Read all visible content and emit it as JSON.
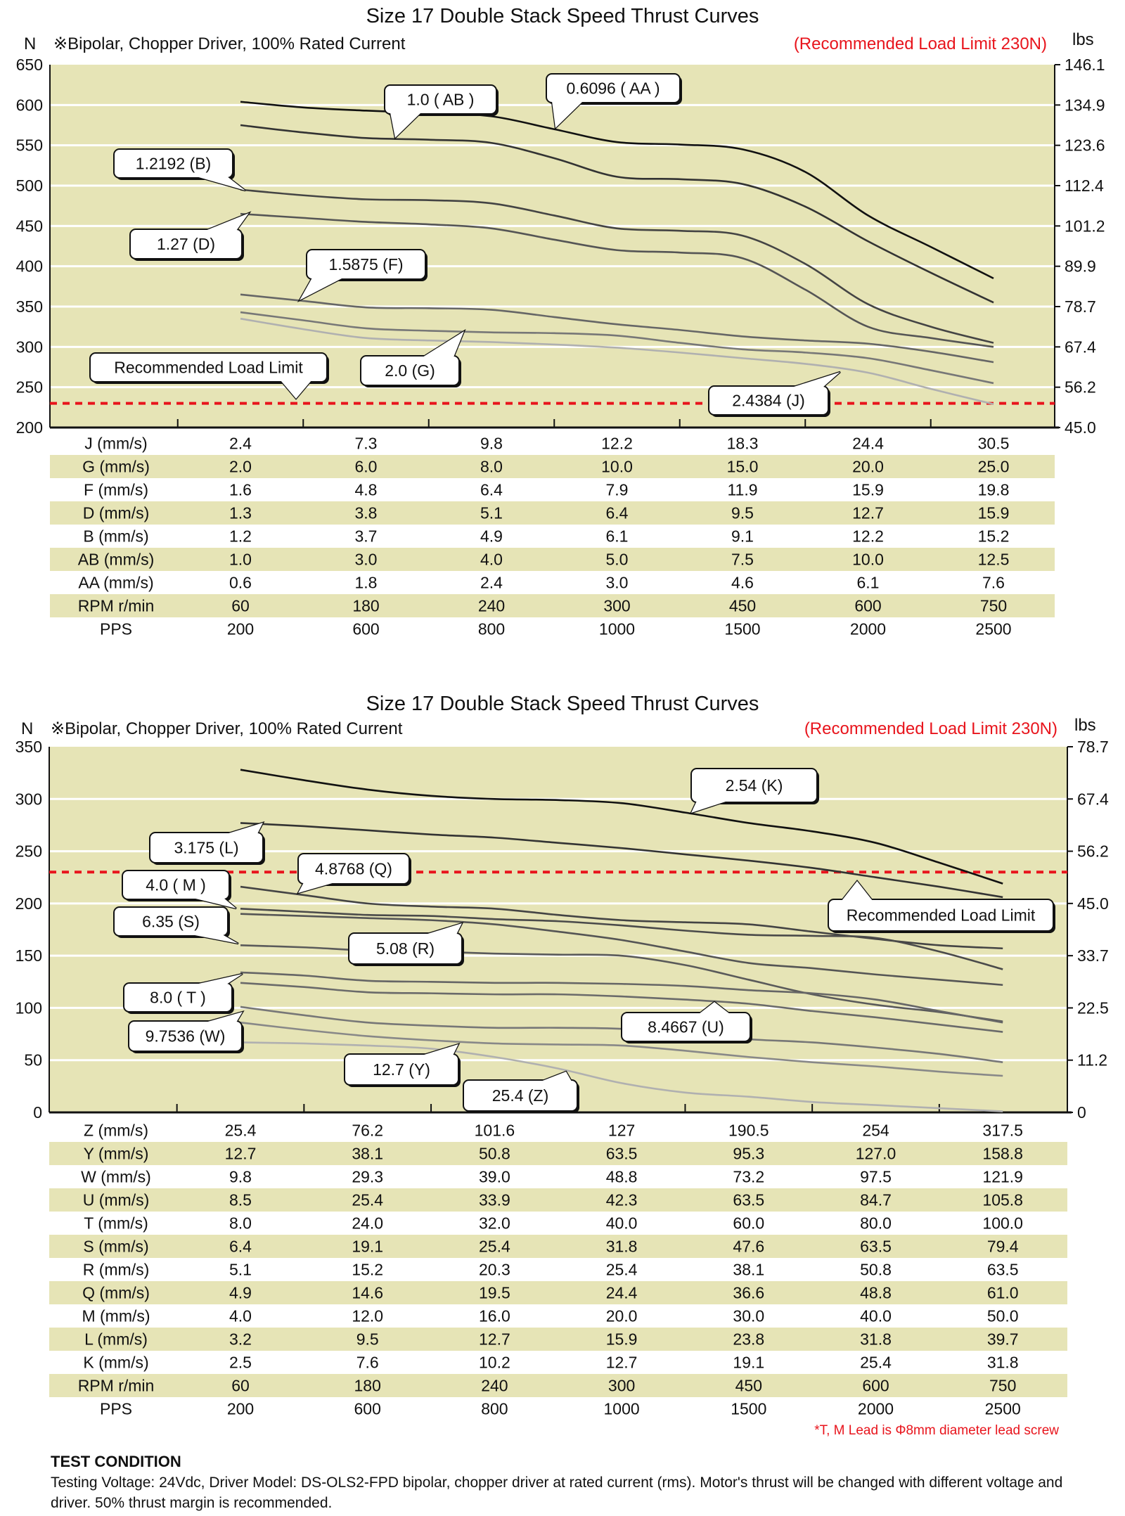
{
  "chart_data": [
    {
      "type": "line",
      "title": "Size 17 Double Stack Speed Thrust Curves",
      "subtitle": "※Bipolar, Chopper Driver, 100% Rated Current",
      "limit_note": "(Recommended Load Limit 230N)",
      "y_left_unit": "N",
      "y_right_unit": "lbs",
      "ylim": [
        200,
        650
      ],
      "y_left_ticks": [
        "650",
        "600",
        "550",
        "500",
        "450",
        "400",
        "350",
        "300",
        "250",
        "200"
      ],
      "y_right_ticks": [
        "146.1",
        "134.9",
        "123.6",
        "112.4",
        "101.2",
        "89.9",
        "78.7",
        "67.4",
        "56.2",
        "45.0"
      ],
      "grid": true,
      "load_limit": {
        "value": 230,
        "label": "Recommended Load Limit",
        "color": "#e8141c"
      },
      "x_note": "values given at each PPS column; mid_values between adjacent columns",
      "x_pps": [
        200,
        600,
        800,
        1000,
        1500,
        2000,
        2500
      ],
      "series": [
        {
          "name": "0.6096 ( AA )",
          "color": "#111111",
          "values": [
            604,
            593,
            586,
            554,
            545,
            463,
            385
          ],
          "mid_values": [
            597,
            590,
            570,
            551,
            517,
            424
          ]
        },
        {
          "name": "1.0 ( AB )",
          "color": "#333333",
          "values": [
            575,
            559,
            553,
            511,
            502,
            431,
            355
          ],
          "mid_values": [
            566,
            557,
            534,
            508,
            474,
            392
          ]
        },
        {
          "name": "1.2192 (B)",
          "color": "#444444",
          "values": [
            495,
            483,
            478,
            447,
            438,
            353,
            305
          ],
          "mid_values": [
            488,
            482,
            463,
            444,
            403,
            325
          ]
        },
        {
          "name": "1.27 (D)",
          "color": "#555555",
          "values": [
            465,
            455,
            447,
            420,
            410,
            325,
            300
          ],
          "mid_values": [
            460,
            452,
            433,
            417,
            371,
            311
          ]
        },
        {
          "name": "1.5875 (F)",
          "color": "#666666",
          "values": [
            365,
            349,
            346,
            328,
            313,
            304,
            281
          ],
          "mid_values": [
            357,
            348,
            337,
            321,
            308,
            294
          ]
        },
        {
          "name": "2.0 (G)",
          "color": "#777777",
          "values": [
            343,
            323,
            318,
            314,
            297,
            286,
            255
          ],
          "mid_values": [
            333,
            320,
            317,
            305,
            293,
            271
          ]
        },
        {
          "name": "2.4384 (J)",
          "color": "#b0b0b0",
          "values": [
            335,
            311,
            306,
            299,
            286,
            268,
            229
          ],
          "mid_values": [
            322,
            308,
            303,
            293,
            279,
            248
          ]
        }
      ],
      "table": [
        {
          "label": "J (mm/s)",
          "values": [
            "2.4",
            "7.3",
            "9.8",
            "12.2",
            "18.3",
            "24.4",
            "30.5"
          ]
        },
        {
          "label": "G (mm/s)",
          "values": [
            "2.0",
            "6.0",
            "8.0",
            "10.0",
            "15.0",
            "20.0",
            "25.0"
          ]
        },
        {
          "label": "F (mm/s)",
          "values": [
            "1.6",
            "4.8",
            "6.4",
            "7.9",
            "11.9",
            "15.9",
            "19.8"
          ]
        },
        {
          "label": "D (mm/s)",
          "values": [
            "1.3",
            "3.8",
            "5.1",
            "6.4",
            "9.5",
            "12.7",
            "15.9"
          ]
        },
        {
          "label": "B (mm/s)",
          "values": [
            "1.2",
            "3.7",
            "4.9",
            "6.1",
            "9.1",
            "12.2",
            "15.2"
          ]
        },
        {
          "label": "AB (mm/s)",
          "values": [
            "1.0",
            "3.0",
            "4.0",
            "5.0",
            "7.5",
            "10.0",
            "12.5"
          ]
        },
        {
          "label": "AA (mm/s)",
          "values": [
            "0.6",
            "1.8",
            "2.4",
            "3.0",
            "4.6",
            "6.1",
            "7.6"
          ]
        },
        {
          "label": "RPM r/min",
          "values": [
            "60",
            "180",
            "240",
            "300",
            "450",
            "600",
            "750"
          ]
        },
        {
          "label": "PPS",
          "values": [
            "200",
            "600",
            "800",
            "1000",
            "1500",
            "2000",
            "2500"
          ]
        }
      ]
    },
    {
      "type": "line",
      "title": "Size 17 Double Stack Speed Thrust Curves",
      "subtitle": "※Bipolar, Chopper Driver, 100% Rated Current",
      "limit_note": "(Recommended Load Limit 230N)",
      "y_left_unit": "N",
      "y_right_unit": "lbs",
      "ylim": [
        0,
        350
      ],
      "y_left_ticks": [
        "350",
        "300",
        "250",
        "200",
        "150",
        "100",
        "50",
        "0"
      ],
      "y_right_ticks": [
        "78.7",
        "67.4",
        "56.2",
        "45.0",
        "33.7",
        "22.5",
        "11.2",
        "0"
      ],
      "grid": true,
      "load_limit": {
        "value": 230,
        "label": "Recommended Load Limit",
        "color": "#e8141c"
      },
      "x_note": "values given at each PPS column; mid_values between adjacent columns",
      "x_pps": [
        200,
        600,
        800,
        1000,
        1500,
        2000,
        2500
      ],
      "series": [
        {
          "name": "2.54 (K)",
          "color": "#111111",
          "values": [
            328,
            309,
            300,
            296,
            277,
            258,
            219
          ],
          "mid_values": [
            318,
            303,
            299,
            287,
            269,
            239
          ]
        },
        {
          "name": "3.175 (L)",
          "color": "#333333",
          "values": [
            277,
            270,
            263,
            253,
            241,
            225,
            206
          ],
          "mid_values": [
            274,
            266,
            258,
            247,
            234,
            216
          ]
        },
        {
          "name": "4.0 ( M )",
          "color": "#444444",
          "values": [
            216,
            200,
            195,
            184,
            180,
            166,
            157
          ],
          "mid_values": [
            208,
            197,
            189,
            182,
            173,
            160
          ]
        },
        {
          "name": "4.8768 (Q)",
          "color": "#4a4a4a",
          "values": [
            195,
            189,
            185,
            179,
            170,
            167,
            137
          ],
          "mid_values": [
            192,
            188,
            183,
            174,
            169,
            154
          ]
        },
        {
          "name": "5.08 (R)",
          "color": "#555555",
          "values": [
            190,
            186,
            180,
            165,
            143,
            132,
            122
          ],
          "mid_values": [
            188,
            184,
            173,
            154,
            138,
            127
          ]
        },
        {
          "name": "6.35 (S)",
          "color": "#5a5a5a",
          "values": [
            160,
            155,
            152,
            150,
            127,
            103,
            87
          ],
          "mid_values": [
            158,
            154,
            151,
            141,
            113,
            96
          ]
        },
        {
          "name": "8.0 ( T )",
          "color": "#666666",
          "values": [
            134,
            126,
            124,
            123,
            117,
            108,
            86
          ],
          "mid_values": [
            131,
            125,
            124,
            121,
            114,
            97
          ]
        },
        {
          "name": "8.4667 (U)",
          "color": "#6a6a6a",
          "values": [
            124,
            115,
            113,
            111,
            104,
            91,
            77
          ],
          "mid_values": [
            120,
            114,
            113,
            108,
            97,
            84
          ]
        },
        {
          "name": "9.7536 (W)",
          "color": "#777777",
          "values": [
            101,
            86,
            81,
            80,
            70,
            62,
            48
          ],
          "mid_values": [
            93,
            83,
            81,
            75,
            67,
            56
          ]
        },
        {
          "name": "12.7 (Y)",
          "color": "#888888",
          "values": [
            86,
            73,
            66,
            64,
            53,
            44,
            35
          ],
          "mid_values": [
            79,
            69,
            65,
            59,
            48,
            39
          ]
        },
        {
          "name": "25.4 (Z)",
          "color": "#b0b0b0",
          "values": [
            67,
            64,
            53,
            28,
            15,
            7,
            1
          ],
          "mid_values": [
            66,
            61,
            42,
            19,
            10,
            4
          ]
        }
      ],
      "table": [
        {
          "label": "Z (mm/s)",
          "values": [
            "25.4",
            "76.2",
            "101.6",
            "127",
            "190.5",
            "254",
            "317.5"
          ]
        },
        {
          "label": "Y (mm/s)",
          "values": [
            "12.7",
            "38.1",
            "50.8",
            "63.5",
            "95.3",
            "127.0",
            "158.8"
          ]
        },
        {
          "label": "W (mm/s)",
          "values": [
            "9.8",
            "29.3",
            "39.0",
            "48.8",
            "73.2",
            "97.5",
            "121.9"
          ]
        },
        {
          "label": "U (mm/s)",
          "values": [
            "8.5",
            "25.4",
            "33.9",
            "42.3",
            "63.5",
            "84.7",
            "105.8"
          ]
        },
        {
          "label": "T (mm/s)",
          "values": [
            "8.0",
            "24.0",
            "32.0",
            "40.0",
            "60.0",
            "80.0",
            "100.0"
          ]
        },
        {
          "label": "S (mm/s)",
          "values": [
            "6.4",
            "19.1",
            "25.4",
            "31.8",
            "47.6",
            "63.5",
            "79.4"
          ]
        },
        {
          "label": "R (mm/s)",
          "values": [
            "5.1",
            "15.2",
            "20.3",
            "25.4",
            "38.1",
            "50.8",
            "63.5"
          ]
        },
        {
          "label": "Q (mm/s)",
          "values": [
            "4.9",
            "14.6",
            "19.5",
            "24.4",
            "36.6",
            "48.8",
            "61.0"
          ]
        },
        {
          "label": "M (mm/s)",
          "values": [
            "4.0",
            "12.0",
            "16.0",
            "20.0",
            "30.0",
            "40.0",
            "50.0"
          ]
        },
        {
          "label": "L (mm/s)",
          "values": [
            "3.2",
            "9.5",
            "12.7",
            "15.9",
            "23.8",
            "31.8",
            "39.7"
          ]
        },
        {
          "label": "K (mm/s)",
          "values": [
            "2.5",
            "7.6",
            "10.2",
            "12.7",
            "19.1",
            "25.4",
            "31.8"
          ]
        },
        {
          "label": "RPM r/min",
          "values": [
            "60",
            "180",
            "240",
            "300",
            "450",
            "600",
            "750"
          ]
        },
        {
          "label": "PPS",
          "values": [
            "200",
            "600",
            "800",
            "1000",
            "1500",
            "2000",
            "2500"
          ]
        }
      ]
    }
  ],
  "colors": {
    "plot_bg": "#e6e4b6",
    "row_shade": "#e6e4b6",
    "limit": "#e8141c"
  },
  "footer": {
    "note": "*T, M Lead is Φ8mm diameter lead screw",
    "heading": "TEST CONDITION",
    "text": "Testing Voltage: 24Vdc, Driver Model: DS-OLS2-FPD bipolar, chopper driver at rated current (rms). Motor's thrust will be changed with different voltage and driver. 50% thrust margin is recommended."
  }
}
